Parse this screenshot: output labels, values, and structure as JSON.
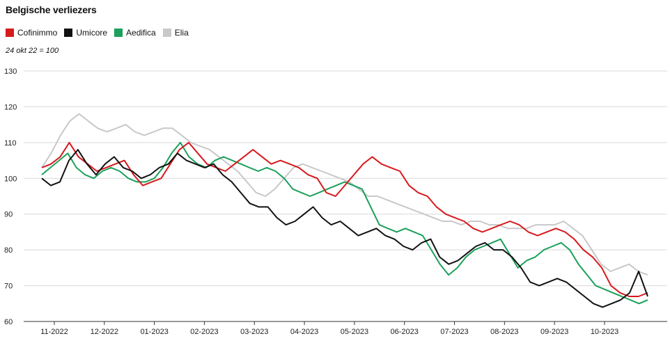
{
  "chart_data": {
    "type": "line",
    "title": "Belgische verliezers",
    "subtitle": "24 okt 22 = 100",
    "ylim": [
      60,
      130
    ],
    "yticks": [
      60,
      70,
      80,
      90,
      100,
      110,
      120,
      130
    ],
    "x_ticks": [
      "11-2022",
      "12-2022",
      "01-2023",
      "02-2023",
      "03-2023",
      "04-2023",
      "05-2023",
      "06-2023",
      "07-2023",
      "08-2023",
      "09-2023",
      "10-2023"
    ],
    "grid": true,
    "legend_position": "top-left",
    "series": [
      {
        "name": "Cofinimmo",
        "color": "#d7191c",
        "values": [
          103,
          104,
          106,
          110,
          106,
          104,
          102,
          103,
          104,
          105,
          101,
          98,
          99,
          100,
          104,
          108,
          110,
          107,
          104,
          103,
          102,
          104,
          106,
          108,
          106,
          104,
          105,
          104,
          103,
          101,
          100,
          96,
          95,
          98,
          101,
          104,
          106,
          104,
          103,
          102,
          98,
          96,
          95,
          92,
          90,
          89,
          88,
          86,
          85,
          86,
          87,
          88,
          87,
          85,
          84,
          85,
          86,
          85,
          83,
          80,
          78,
          75,
          70,
          68,
          67,
          67,
          68
        ]
      },
      {
        "name": "Umicore",
        "color": "#111111",
        "values": [
          100,
          98,
          99,
          105,
          108,
          104,
          101,
          104,
          106,
          103,
          102,
          100,
          101,
          103,
          104,
          107,
          105,
          104,
          103,
          104,
          101,
          99,
          96,
          93,
          92,
          92,
          89,
          87,
          88,
          90,
          92,
          89,
          87,
          88,
          86,
          84,
          85,
          86,
          84,
          83,
          81,
          80,
          82,
          83,
          78,
          76,
          77,
          79,
          81,
          82,
          80,
          80,
          78,
          75,
          71,
          70,
          71,
          72,
          71,
          69,
          67,
          65,
          64,
          65,
          66,
          68,
          74,
          67
        ]
      },
      {
        "name": "Aedifica",
        "color": "#1aa05a",
        "values": [
          101,
          103,
          105,
          107,
          103,
          101,
          100,
          102,
          103,
          102,
          100,
          99,
          99,
          100,
          103,
          107,
          110,
          106,
          104,
          103,
          105,
          106,
          105,
          104,
          103,
          102,
          103,
          102,
          100,
          97,
          96,
          95,
          96,
          97,
          98,
          99,
          98,
          97,
          92,
          87,
          86,
          85,
          86,
          85,
          84,
          80,
          76,
          73,
          75,
          78,
          80,
          81,
          82,
          83,
          79,
          75,
          77,
          78,
          80,
          81,
          82,
          80,
          76,
          73,
          70,
          69,
          68,
          67,
          66,
          65,
          66
        ]
      },
      {
        "name": "Elia",
        "color": "#c8c8c8",
        "values": [
          103,
          107,
          112,
          116,
          118,
          116,
          114,
          113,
          114,
          115,
          113,
          112,
          113,
          114,
          114,
          112,
          110,
          109,
          108,
          106,
          104,
          102,
          99,
          96,
          95,
          97,
          100,
          103,
          104,
          103,
          102,
          101,
          100,
          99,
          97,
          95,
          95,
          94,
          93,
          92,
          91,
          90,
          89,
          88,
          88,
          87,
          88,
          88,
          87,
          87,
          86,
          86,
          86,
          87,
          87,
          87,
          88,
          86,
          84,
          80,
          76,
          74,
          75,
          76,
          74,
          73
        ]
      }
    ]
  }
}
